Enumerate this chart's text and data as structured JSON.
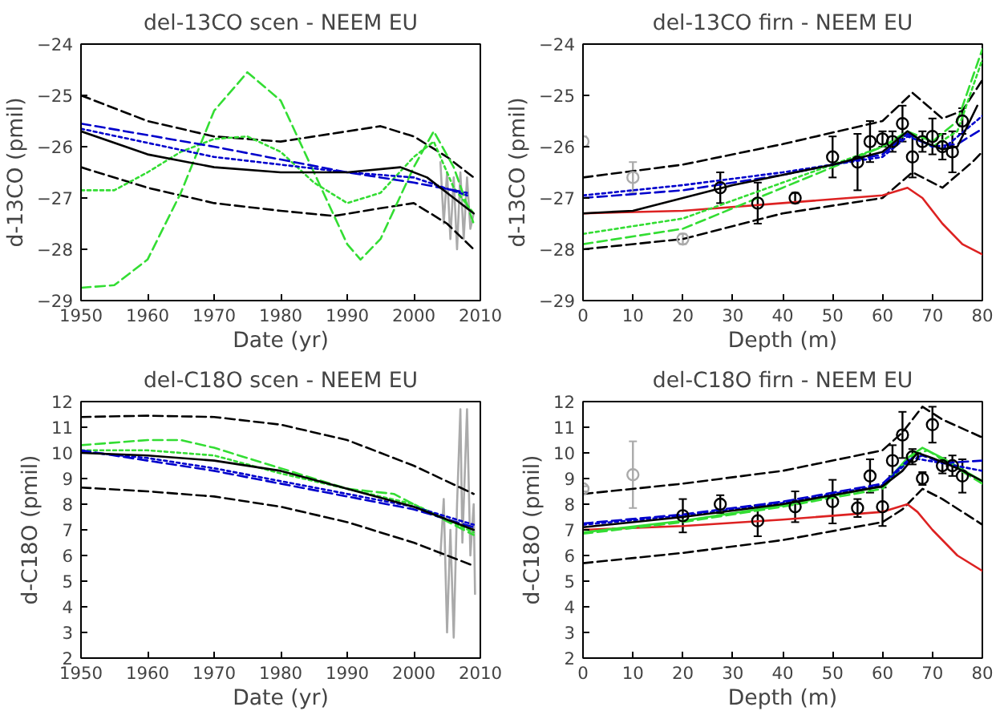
{
  "chart_data": [
    {
      "type": "line",
      "title": "del-13CO scen - NEEM EU",
      "xlabel": "Date (yr)",
      "ylabel": "d-13CO (pmil)",
      "xlim": [
        1950,
        2010
      ],
      "ylim": [
        -29,
        -24
      ],
      "xticks": [
        1950,
        1960,
        1970,
        1980,
        1990,
        2000,
        2010
      ],
      "yticks": [
        -29,
        -28,
        -27,
        -26,
        -25,
        -24
      ],
      "grid": false,
      "series": [
        {
          "color": "#aaaaaa",
          "line_style": "solid",
          "x": [
            2004,
            2004.5,
            2005,
            2005.5,
            2006,
            2006.5,
            2007,
            2007.5,
            2008,
            2008.5,
            2009
          ],
          "values": [
            -26.3,
            -27.5,
            -26.5,
            -27.8,
            -26.6,
            -28.0,
            -26.5,
            -27.8,
            -26.6,
            -27.6,
            -27.3
          ]
        },
        {
          "color": "#000000",
          "line_style": "dashed",
          "x": [
            1950,
            1960,
            1970,
            1980,
            1990,
            1995,
            2000,
            2005,
            2009
          ],
          "values": [
            -25.0,
            -25.5,
            -25.8,
            -25.9,
            -25.7,
            -25.6,
            -25.8,
            -26.2,
            -26.6
          ]
        },
        {
          "color": "#000000",
          "line_style": "dashed",
          "x": [
            1950,
            1960,
            1970,
            1980,
            1988,
            1995,
            2000,
            2005,
            2009
          ],
          "values": [
            -26.4,
            -26.8,
            -27.1,
            -27.25,
            -27.35,
            -27.2,
            -27.1,
            -27.5,
            -28.0
          ]
        },
        {
          "color": "#33dd33",
          "line_style": "dashed",
          "x": [
            1950,
            1955,
            1960,
            1965,
            1970,
            1975,
            1980,
            1985,
            1990,
            1992,
            1995,
            2000,
            2003,
            2006,
            2009
          ],
          "values": [
            -28.75,
            -28.7,
            -28.2,
            -26.9,
            -25.3,
            -24.55,
            -25.1,
            -26.5,
            -27.9,
            -28.2,
            -27.8,
            -26.4,
            -25.7,
            -26.4,
            -27.5
          ]
        },
        {
          "color": "#33dd33",
          "line_style": "dotted",
          "x": [
            1950,
            1955,
            1960,
            1965,
            1970,
            1975,
            1980,
            1985,
            1990,
            1995,
            2000,
            2003,
            2006,
            2009
          ],
          "values": [
            -26.85,
            -26.85,
            -26.5,
            -26.1,
            -25.85,
            -25.8,
            -26.1,
            -26.7,
            -27.1,
            -26.9,
            -26.2,
            -25.9,
            -26.8,
            -27.3
          ]
        },
        {
          "color": "#0000cc",
          "line_style": "dashed",
          "x": [
            1950,
            1970,
            1990,
            2000,
            2008
          ],
          "values": [
            -25.55,
            -26.0,
            -26.5,
            -26.7,
            -26.9
          ]
        },
        {
          "color": "#0000cc",
          "line_style": "dotted",
          "x": [
            1950,
            1970,
            1990,
            2000,
            2008
          ],
          "values": [
            -25.65,
            -26.2,
            -26.5,
            -26.6,
            -26.95
          ]
        },
        {
          "color": "#000000",
          "line_style": "solid",
          "x": [
            1950,
            1960,
            1970,
            1980,
            1990,
            1998,
            2002,
            2006,
            2009
          ],
          "values": [
            -25.7,
            -26.15,
            -26.4,
            -26.5,
            -26.5,
            -26.4,
            -26.6,
            -27.0,
            -27.3
          ]
        }
      ]
    },
    {
      "type": "line",
      "title": "del-13CO firn - NEEM EU",
      "xlabel": "Depth (m)",
      "ylabel": "d-13CO (pmil)",
      "xlim": [
        0,
        80
      ],
      "ylim": [
        -29,
        -24
      ],
      "xticks": [
        0,
        10,
        20,
        30,
        40,
        50,
        60,
        70,
        80
      ],
      "yticks": [
        -29,
        -28,
        -27,
        -26,
        -25,
        -24
      ],
      "grid": false,
      "series": [
        {
          "color": "#000000",
          "line_style": "dashed",
          "x": [
            0,
            20,
            40,
            60,
            66,
            72,
            76,
            80
          ],
          "values": [
            -26.6,
            -26.35,
            -25.95,
            -25.5,
            -24.95,
            -25.45,
            -25.3,
            -24.7
          ]
        },
        {
          "color": "#000000",
          "line_style": "dashed",
          "x": [
            0,
            20,
            40,
            60,
            66,
            72,
            78,
            80
          ],
          "values": [
            -28.0,
            -27.8,
            -27.3,
            -27.0,
            -26.5,
            -26.8,
            -26.3,
            -26.1
          ]
        },
        {
          "color": "#dd2222",
          "line_style": "solid",
          "x": [
            0,
            20,
            40,
            60,
            65,
            68,
            72,
            76,
            80
          ],
          "values": [
            -27.3,
            -27.25,
            -27.1,
            -26.95,
            -26.8,
            -27.0,
            -27.5,
            -27.9,
            -28.1
          ]
        },
        {
          "color": "#33dd33",
          "line_style": "dashed",
          "x": [
            0,
            20,
            40,
            60,
            65,
            70,
            75,
            80
          ],
          "values": [
            -27.9,
            -27.6,
            -26.8,
            -26.0,
            -25.7,
            -25.9,
            -25.5,
            -24.1
          ]
        },
        {
          "color": "#33dd33",
          "line_style": "dotted",
          "x": [
            0,
            20,
            40,
            60,
            65,
            70,
            75,
            80
          ],
          "values": [
            -27.7,
            -27.4,
            -26.7,
            -26.0,
            -25.75,
            -26.0,
            -25.7,
            -24.3
          ]
        },
        {
          "color": "#0000cc",
          "line_style": "dashed",
          "x": [
            0,
            20,
            40,
            60,
            65,
            70,
            75,
            80
          ],
          "values": [
            -27.0,
            -26.85,
            -26.55,
            -26.15,
            -25.75,
            -26.0,
            -25.95,
            -25.65
          ]
        },
        {
          "color": "#0000cc",
          "line_style": "dotted",
          "x": [
            0,
            20,
            40,
            60,
            65,
            72,
            80
          ],
          "values": [
            -26.95,
            -26.75,
            -26.5,
            -26.2,
            -25.8,
            -26.05,
            -25.4
          ]
        },
        {
          "color": "#000000",
          "line_style": "solid",
          "x": [
            0,
            10,
            20,
            30,
            40,
            50,
            60,
            65,
            68,
            72,
            75,
            79
          ],
          "values": [
            -27.3,
            -27.25,
            -27.0,
            -26.75,
            -26.55,
            -26.35,
            -26.1,
            -25.7,
            -25.9,
            -26.05,
            -26.0,
            -25.2
          ]
        },
        {
          "type": "scatter",
          "color": "#aaaaaa",
          "marker": "circle",
          "x": [
            0,
            10,
            20
          ],
          "values": [
            -25.9,
            -26.6,
            -27.8
          ],
          "errors": [
            0.1,
            0.3,
            0.1
          ]
        },
        {
          "type": "scatter",
          "color": "#000000",
          "marker": "circle",
          "x": [
            27.5,
            35,
            42.5,
            50,
            55,
            57.5,
            60,
            62,
            64,
            66,
            68,
            70,
            72,
            74,
            76
          ],
          "values": [
            -26.8,
            -27.1,
            -27.0,
            -26.2,
            -26.3,
            -25.9,
            -25.85,
            -25.9,
            -25.55,
            -26.2,
            -25.9,
            -25.8,
            -26.0,
            -26.1,
            -25.5
          ],
          "errors": [
            0.3,
            0.4,
            0.1,
            0.4,
            0.55,
            0.4,
            0.15,
            0.2,
            0.35,
            0.4,
            0.2,
            0.35,
            0.25,
            0.4,
            0.25
          ]
        }
      ]
    },
    {
      "type": "line",
      "title": "del-C18O scen - NEEM EU",
      "xlabel": "Date (yr)",
      "ylabel": "d-C18O (pmil)",
      "xlim": [
        1950,
        2010
      ],
      "ylim": [
        2,
        12
      ],
      "xticks": [
        1950,
        1960,
        1970,
        1980,
        1990,
        2000,
        2010
      ],
      "yticks": [
        2,
        3,
        4,
        5,
        6,
        7,
        8,
        9,
        10,
        11,
        12
      ],
      "grid": false,
      "series": [
        {
          "color": "#aaaaaa",
          "line_style": "solid",
          "x": [
            2004,
            2004.5,
            2005,
            2005.5,
            2006,
            2006.5,
            2007,
            2007.3,
            2008,
            2008.5,
            2009,
            2009.2
          ],
          "values": [
            6.0,
            8.2,
            3.0,
            7.0,
            2.8,
            8.0,
            11.7,
            6.5,
            11.7,
            6.0,
            8.0,
            4.5
          ]
        },
        {
          "color": "#000000",
          "line_style": "dashed",
          "x": [
            1950,
            1960,
            1970,
            1980,
            1990,
            2000,
            2009
          ],
          "values": [
            11.4,
            11.45,
            11.4,
            11.1,
            10.5,
            9.5,
            8.4
          ]
        },
        {
          "color": "#000000",
          "line_style": "dashed",
          "x": [
            1950,
            1960,
            1970,
            1980,
            1990,
            2000,
            2009
          ],
          "values": [
            8.65,
            8.5,
            8.3,
            7.9,
            7.3,
            6.5,
            5.6
          ]
        },
        {
          "color": "#33dd33",
          "line_style": "dashed",
          "x": [
            1950,
            1960,
            1965,
            1970,
            1980,
            1990,
            1997,
            2000,
            2009
          ],
          "values": [
            10.3,
            10.5,
            10.5,
            10.2,
            9.4,
            8.6,
            8.4,
            8.0,
            6.8
          ]
        },
        {
          "color": "#33dd33",
          "line_style": "dotted",
          "x": [
            1950,
            1960,
            1970,
            1980,
            1990,
            2000,
            2009
          ],
          "values": [
            10.1,
            10.1,
            9.9,
            9.2,
            8.6,
            8.0,
            6.9
          ]
        },
        {
          "color": "#0000cc",
          "line_style": "dashed",
          "x": [
            1950,
            1960,
            1970,
            1980,
            1990,
            2000,
            2009
          ],
          "values": [
            10.1,
            9.7,
            9.3,
            8.8,
            8.3,
            7.8,
            7.1
          ]
        },
        {
          "color": "#0000cc",
          "line_style": "dotted",
          "x": [
            1950,
            1960,
            1970,
            1980,
            1990,
            2000,
            2009
          ],
          "values": [
            10.05,
            9.8,
            9.4,
            8.9,
            8.4,
            7.9,
            7.2
          ]
        },
        {
          "color": "#000000",
          "line_style": "solid",
          "x": [
            1950,
            1960,
            1970,
            1980,
            1990,
            2000,
            2009
          ],
          "values": [
            10.0,
            9.9,
            9.7,
            9.3,
            8.6,
            7.9,
            7.0
          ]
        }
      ]
    },
    {
      "type": "line",
      "title": "del-C18O firn - NEEM EU",
      "xlabel": "Depth (m)",
      "ylabel": "d-C18O (pmil)",
      "xlim": [
        0,
        80
      ],
      "ylim": [
        2,
        12
      ],
      "xticks": [
        0,
        10,
        20,
        30,
        40,
        50,
        60,
        70,
        80
      ],
      "yticks": [
        2,
        3,
        4,
        5,
        6,
        7,
        8,
        9,
        10,
        11,
        12
      ],
      "grid": false,
      "series": [
        {
          "color": "#000000",
          "line_style": "dashed",
          "x": [
            0,
            20,
            40,
            60,
            64,
            68,
            72,
            80
          ],
          "values": [
            8.4,
            8.8,
            9.3,
            10.1,
            10.8,
            11.8,
            11.3,
            10.6
          ]
        },
        {
          "color": "#000000",
          "line_style": "dashed",
          "x": [
            0,
            20,
            40,
            60,
            64,
            68,
            72,
            80
          ],
          "values": [
            5.7,
            6.1,
            6.6,
            7.3,
            7.8,
            8.6,
            8.2,
            7.2
          ]
        },
        {
          "color": "#dd2222",
          "line_style": "solid",
          "x": [
            0,
            20,
            40,
            60,
            65,
            67,
            70,
            75,
            80
          ],
          "values": [
            7.0,
            7.15,
            7.4,
            7.7,
            8.0,
            7.7,
            7.0,
            6.0,
            5.4
          ]
        },
        {
          "color": "#33dd33",
          "line_style": "dashed",
          "x": [
            0,
            20,
            40,
            60,
            66,
            69,
            80
          ],
          "values": [
            6.85,
            7.3,
            7.9,
            8.6,
            9.9,
            10.1,
            8.8
          ]
        },
        {
          "color": "#33dd33",
          "line_style": "solid",
          "x": [
            0,
            20,
            40,
            60,
            65,
            68,
            72,
            80
          ],
          "values": [
            6.9,
            7.35,
            7.95,
            8.7,
            9.8,
            10.2,
            9.8,
            8.9
          ]
        },
        {
          "color": "#0000cc",
          "line_style": "dashed",
          "x": [
            0,
            20,
            40,
            60,
            65,
            68,
            72,
            80
          ],
          "values": [
            7.25,
            7.6,
            8.1,
            8.8,
            9.7,
            9.9,
            9.6,
            9.7
          ]
        },
        {
          "color": "#0000cc",
          "line_style": "dotted",
          "x": [
            0,
            20,
            40,
            60,
            66,
            72,
            80
          ],
          "values": [
            7.2,
            7.55,
            8.05,
            8.75,
            9.8,
            9.6,
            9.3
          ]
        },
        {
          "color": "#000000",
          "line_style": "solid",
          "x": [
            0,
            20,
            40,
            60,
            64,
            67,
            70,
            75,
            80
          ],
          "values": [
            7.1,
            7.5,
            8.0,
            8.7,
            9.3,
            10.0,
            9.8,
            9.4,
            8.9
          ]
        },
        {
          "type": "scatter",
          "color": "#aaaaaa",
          "marker": "circle",
          "x": [
            0,
            10
          ],
          "values": [
            8.6,
            9.15
          ],
          "errors": [
            0.1,
            1.3
          ]
        },
        {
          "type": "scatter",
          "color": "#000000",
          "marker": "circle",
          "x": [
            20,
            27.5,
            35,
            42.5,
            50,
            55,
            57.5,
            60,
            62,
            64,
            66,
            68,
            70,
            72,
            74,
            76
          ],
          "values": [
            7.55,
            8.0,
            7.35,
            7.9,
            8.1,
            7.85,
            9.1,
            7.9,
            9.7,
            10.7,
            9.85,
            9.0,
            11.1,
            9.5,
            9.5,
            9.1
          ],
          "errors": [
            0.65,
            0.35,
            0.6,
            0.6,
            0.85,
            0.35,
            0.65,
            0.75,
            0.6,
            0.9,
            0.3,
            0.25,
            0.7,
            0.3,
            0.4,
            0.65
          ]
        }
      ]
    }
  ]
}
